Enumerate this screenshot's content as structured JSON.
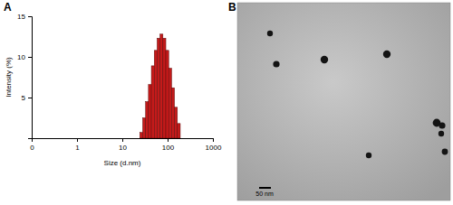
{
  "chart_data": {
    "type": "histogram",
    "panel_label": "A",
    "x_label": "Size (d.nm)",
    "y_label": "Intensity (%)",
    "bins": [
      24.4,
      28.2,
      32.7,
      37.8,
      43.8,
      50.7,
      58.8,
      68.1,
      78.8,
      91.3,
      105.7,
      122.4,
      141.8,
      164.2,
      190.1
    ],
    "values": [
      0.7,
      2.5,
      4.5,
      6.6,
      8.9,
      10.8,
      12.3,
      12.8,
      12.3,
      10.8,
      8.6,
      6.2,
      3.8,
      1.8
    ],
    "color": "#c41a1a",
    "log": "x",
    "xlim": [
      0.1,
      1000
    ],
    "xticks": [
      {
        "value": 0.1,
        "label": "0"
      },
      1,
      10,
      100,
      1000
    ],
    "ylim": [
      0,
      15
    ],
    "yticks": [
      5,
      10,
      15
    ]
  },
  "image_panel": {
    "panel_label": "B",
    "scale_bar_label": "50 nm"
  }
}
